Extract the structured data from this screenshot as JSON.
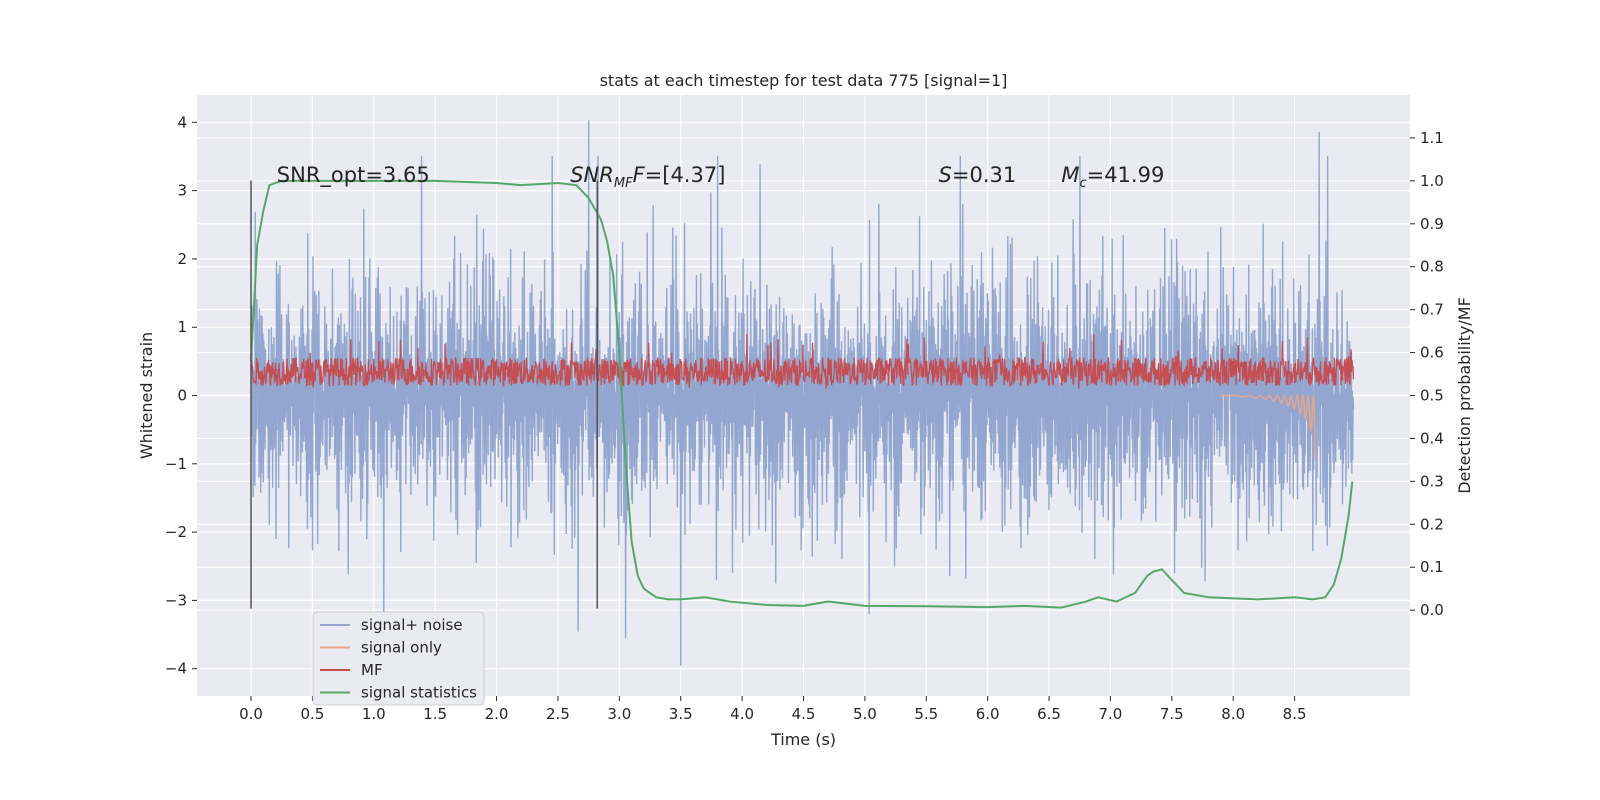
{
  "chart_data": {
    "type": "line",
    "title": "stats at each timestep for test data 775 [signal=1]",
    "xlabel": "Time (s)",
    "ylabel": "Whitened strain",
    "ylabel_right": "Detection probability/MF",
    "xlim": [
      -0.44,
      9.44
    ],
    "ylim": [
      -4.4,
      4.4
    ],
    "ylim_right": [
      -0.2,
      1.2
    ],
    "x_ticks": [
      0.0,
      0.5,
      1.0,
      1.5,
      2.0,
      2.5,
      3.0,
      3.5,
      4.0,
      4.5,
      5.0,
      5.5,
      6.0,
      6.5,
      7.0,
      7.5,
      8.0,
      8.5
    ],
    "x_tick_labels": [
      "0.0",
      "0.5",
      "1.0",
      "1.5",
      "2.0",
      "2.5",
      "3.0",
      "3.5",
      "4.0",
      "4.5",
      "5.0",
      "5.5",
      "6.0",
      "6.5",
      "7.0",
      "7.5",
      "8.0",
      "8.5"
    ],
    "y_ticks": [
      4,
      3,
      2,
      1,
      0,
      -1,
      -2,
      -3,
      -4
    ],
    "y_tick_labels": [
      "4",
      "3",
      "2",
      "1",
      "0",
      "−1",
      "−2",
      "−3",
      "−4"
    ],
    "y_right_ticks": [
      1.1,
      1.0,
      0.9,
      0.8,
      0.7,
      0.6,
      0.5,
      0.4,
      0.3,
      0.2,
      0.1,
      0.0
    ],
    "y_right_tick_labels": [
      "1.1",
      "1.0",
      "0.9",
      "0.8",
      "0.7",
      "0.6",
      "0.5",
      "0.4",
      "0.3",
      "0.2",
      "0.1",
      "0.0"
    ],
    "grid": true,
    "legend_position": "lower-left",
    "series": [
      {
        "name": "signal+ noise",
        "color": "#92a6cf",
        "axis": "left",
        "x_range": [
          0.0,
          8.98
        ],
        "approx_range": [
          -3.9,
          4.0
        ],
        "peaks": [
          [
            2.75,
            4.02
          ],
          [
            8.7,
            3.85
          ],
          [
            3.5,
            -3.95
          ],
          [
            3.05,
            -3.55
          ]
        ]
      },
      {
        "name": "signal only",
        "color": "#e8a58a",
        "axis": "left",
        "x_range": [
          7.9,
          8.67
        ],
        "x": [
          7.9,
          8.1,
          8.2,
          8.3,
          8.4,
          8.5,
          8.55,
          8.6,
          8.63,
          8.65,
          8.66,
          8.67
        ],
        "values": [
          0.0,
          -0.02,
          -0.04,
          -0.07,
          -0.12,
          -0.2,
          -0.27,
          -0.38,
          -0.5,
          -0.65,
          -0.8,
          -0.95
        ]
      },
      {
        "name": "MF",
        "color": "#c44e52",
        "axis": "left",
        "x_range": [
          0.0,
          8.98
        ],
        "approx_range": [
          0.1,
          0.9
        ]
      },
      {
        "name": "signal statistics",
        "color": "#55a868",
        "axis": "right",
        "x": [
          0.0,
          0.05,
          0.1,
          0.15,
          0.25,
          0.5,
          1.0,
          1.5,
          2.0,
          2.2,
          2.5,
          2.65,
          2.75,
          2.85,
          2.9,
          2.95,
          3.0,
          3.05,
          3.1,
          3.15,
          3.2,
          3.3,
          3.4,
          3.5,
          3.7,
          3.9,
          4.2,
          4.5,
          4.7,
          5.0,
          5.5,
          6.0,
          6.3,
          6.6,
          6.8,
          6.9,
          7.05,
          7.2,
          7.3,
          7.35,
          7.42,
          7.5,
          7.6,
          7.8,
          8.2,
          8.5,
          8.65,
          8.75,
          8.82,
          8.88,
          8.94,
          8.97
        ],
        "values": [
          0.58,
          0.85,
          0.93,
          0.99,
          1.0,
          1.0,
          1.0,
          1.0,
          0.995,
          0.99,
          0.995,
          0.99,
          0.96,
          0.91,
          0.86,
          0.78,
          0.6,
          0.35,
          0.16,
          0.08,
          0.05,
          0.03,
          0.025,
          0.025,
          0.03,
          0.02,
          0.012,
          0.01,
          0.02,
          0.01,
          0.009,
          0.007,
          0.01,
          0.006,
          0.02,
          0.03,
          0.02,
          0.04,
          0.08,
          0.09,
          0.095,
          0.07,
          0.04,
          0.03,
          0.025,
          0.03,
          0.025,
          0.03,
          0.06,
          0.12,
          0.22,
          0.3
        ]
      }
    ],
    "vlines": [
      0.0,
      2.82
    ],
    "annotations": [
      {
        "text": "SNR_opt=3.65",
        "x": 0.21,
        "y_right": 1.0,
        "kind": "plain"
      },
      {
        "text": "SNR",
        "sub": "MF",
        "rest": "F=[4.37]",
        "x": 2.6,
        "y_right": 1.0,
        "kind": "italic-sub"
      },
      {
        "text": "S",
        "rest": "=0.31",
        "x": 5.6,
        "y_right": 1.0,
        "kind": "italic"
      },
      {
        "text": "M",
        "sub": "c",
        "rest": "=41.99",
        "x": 6.6,
        "y_right": 1.0,
        "kind": "italic-sub"
      }
    ]
  }
}
